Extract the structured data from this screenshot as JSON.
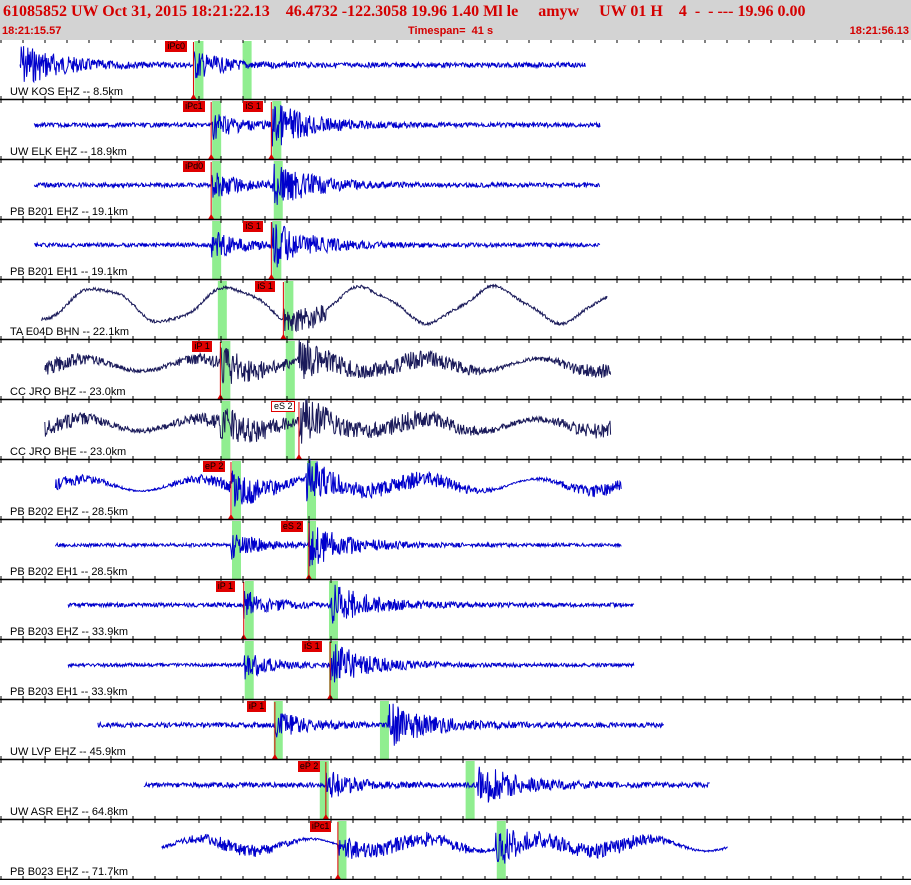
{
  "header": {
    "title": "61085852 UW Oct 31, 2015 18:21:22.13    46.4732 -122.3058 19.96 1.40 Ml le     amyw     UW 01 H    4  -  - --- 19.96 0.00",
    "start_time": "18:21:15.57",
    "timespan": "Timespan=  41 s",
    "end_time": "18:21:56.13"
  },
  "colors": {
    "header_bg": "#d3d3d3",
    "header_text": "#d40000",
    "trace_blue": "#0000cc",
    "trace_dark": "#1a1a5a",
    "pick": "#e00000",
    "window": "#90ee90"
  },
  "traces": [
    {
      "station": "UW KOS EHZ -- 8.5km",
      "color": "blue",
      "start": 0.0,
      "end": 0.8,
      "amp": 0.12,
      "onset_p": 0.245,
      "onset_s": null,
      "style": "burst",
      "picks": [
        {
          "label": "iPc0",
          "pos": 0.245,
          "hollow": false
        }
      ],
      "windows": [
        0.245,
        0.313
      ]
    },
    {
      "station": "UW ELK EHZ -- 18.9km",
      "color": "blue",
      "start": 0.02,
      "end": 0.82,
      "amp": 0.1,
      "onset_p": 0.27,
      "onset_s": 0.355,
      "style": "burst",
      "picks": [
        {
          "label": "iPc1",
          "pos": 0.27,
          "hollow": false
        },
        {
          "label": "iS 1",
          "pos": 0.355,
          "hollow": false
        }
      ],
      "windows": [
        0.27,
        0.355
      ]
    },
    {
      "station": "PB B201 EHZ -- 19.1km",
      "color": "blue",
      "start": 0.02,
      "end": 0.82,
      "amp": 0.1,
      "onset_p": 0.27,
      "onset_s": 0.357,
      "style": "burst",
      "picks": [
        {
          "label": "iPd0",
          "pos": 0.27,
          "hollow": false
        }
      ],
      "windows": [
        0.27,
        0.357
      ]
    },
    {
      "station": "PB B201 EH1 -- 19.1km",
      "color": "blue",
      "start": 0.02,
      "end": 0.82,
      "amp": 0.08,
      "onset_p": 0.27,
      "onset_s": 0.355,
      "style": "burst",
      "picks": [
        {
          "label": "iS 1",
          "pos": 0.355,
          "hollow": false
        }
      ],
      "windows": [
        0.27,
        0.355
      ]
    },
    {
      "station": "TA E04D BHN -- 22.1km",
      "color": "dark",
      "start": 0.03,
      "end": 0.83,
      "amp": 0.7,
      "onset_p": 0.278,
      "onset_s": 0.372,
      "style": "wave",
      "picks": [
        {
          "label": "iS 1",
          "pos": 0.372,
          "hollow": false
        }
      ],
      "windows": [
        0.278,
        0.372
      ]
    },
    {
      "station": "CC JRO BHZ -- 23.0km",
      "color": "dark",
      "start": 0.035,
      "end": 0.835,
      "amp": 0.35,
      "onset_p": 0.283,
      "onset_s": 0.394,
      "style": "noisy",
      "picks": [
        {
          "label": "iP 1",
          "pos": 0.283,
          "hollow": false
        }
      ],
      "windows": [
        0.283,
        0.374
      ]
    },
    {
      "station": "CC JRO BHE -- 23.0km",
      "color": "dark",
      "start": 0.035,
      "end": 0.835,
      "amp": 0.4,
      "onset_p": 0.283,
      "onset_s": 0.394,
      "style": "noisy",
      "picks": [
        {
          "label": "eS 2",
          "pos": 0.394,
          "hollow": true
        }
      ],
      "windows": [
        0.283,
        0.374
      ]
    },
    {
      "station": "PB B202 EHZ -- 28.5km",
      "color": "blue",
      "start": 0.05,
      "end": 0.85,
      "amp": 0.25,
      "onset_p": 0.298,
      "onset_s": 0.404,
      "style": "noisy",
      "picks": [
        {
          "label": "eP 2",
          "pos": 0.298,
          "hollow": false
        }
      ],
      "windows": [
        0.298,
        0.404
      ]
    },
    {
      "station": "PB B202 EH1 -- 28.5km",
      "color": "blue",
      "start": 0.05,
      "end": 0.85,
      "amp": 0.05,
      "onset_p": 0.298,
      "onset_s": 0.408,
      "style": "burst",
      "picks": [
        {
          "label": "eS 2",
          "pos": 0.408,
          "hollow": false
        }
      ],
      "windows": [
        0.298,
        0.404
      ]
    },
    {
      "station": "PB B203 EHZ -- 33.9km",
      "color": "blue",
      "start": 0.068,
      "end": 0.868,
      "amp": 0.08,
      "onset_p": 0.316,
      "onset_s": 0.438,
      "style": "burst",
      "picks": [
        {
          "label": "iP 1",
          "pos": 0.316,
          "hollow": false
        }
      ],
      "windows": [
        0.316,
        0.435
      ]
    },
    {
      "station": "PB B203 EH1 -- 33.9km",
      "color": "blue",
      "start": 0.068,
      "end": 0.868,
      "amp": 0.05,
      "onset_p": 0.316,
      "onset_s": 0.438,
      "style": "burst",
      "picks": [
        {
          "label": "iS 1",
          "pos": 0.438,
          "hollow": false
        }
      ],
      "windows": [
        0.316,
        0.435
      ]
    },
    {
      "station": "UW LVP EHZ -- 45.9km",
      "color": "blue",
      "start": 0.11,
      "end": 0.91,
      "amp": 0.12,
      "onset_p": 0.36,
      "onset_s": 0.52,
      "style": "burst",
      "picks": [
        {
          "label": "iP 1",
          "pos": 0.36,
          "hollow": false
        }
      ],
      "windows": [
        0.357,
        0.507
      ]
    },
    {
      "station": "UW ASR EHZ -- 64.8km",
      "color": "blue",
      "start": 0.175,
      "end": 0.975,
      "amp": 0.12,
      "onset_p": 0.432,
      "onset_s": 0.645,
      "style": "burst",
      "picks": [
        {
          "label": "eP 2",
          "pos": 0.432,
          "hollow": false
        }
      ],
      "windows": [
        0.422,
        0.628
      ]
    },
    {
      "station": "PB B023 EHZ -- 71.7km",
      "color": "blue",
      "start": 0.2,
      "end": 1.0,
      "amp": 0.25,
      "onset_p": 0.449,
      "onset_s": 0.672,
      "style": "noisy",
      "picks": [
        {
          "label": "iPc1",
          "pos": 0.449,
          "hollow": false
        }
      ],
      "windows": [
        0.447,
        0.672
      ]
    }
  ]
}
